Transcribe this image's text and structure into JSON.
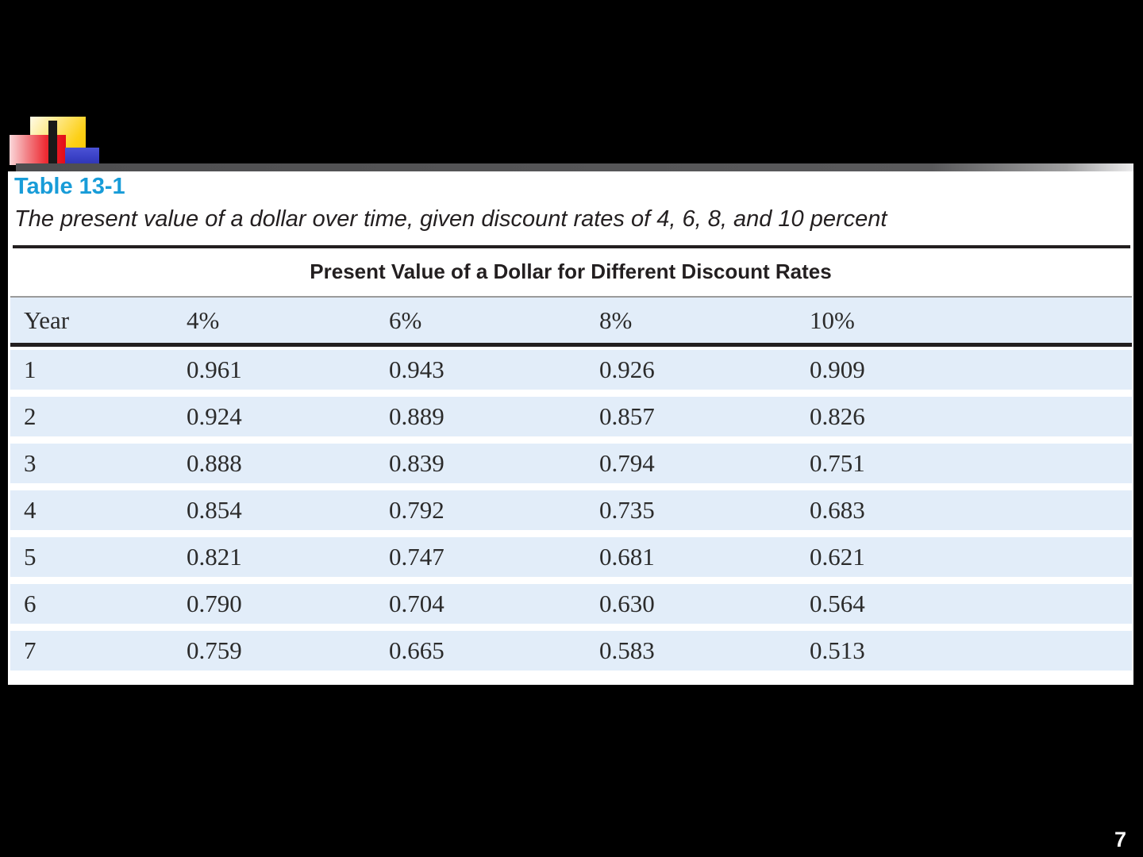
{
  "page_number": "7",
  "logo": {
    "shapes": [
      "yellow-square",
      "red-square",
      "blue-square",
      "black-bar"
    ]
  },
  "table": {
    "number": "Table 13-1",
    "caption": "The present value of a dollar over time, given discount rates of 4, 6, 8, and 10 percent",
    "title": "Present Value of a Dollar for Different Discount Rates",
    "columns": [
      "Year",
      "4%",
      "6%",
      "8%",
      "10%"
    ],
    "rows": [
      [
        "1",
        "0.961",
        "0.943",
        "0.926",
        "0.909"
      ],
      [
        "2",
        "0.924",
        "0.889",
        "0.857",
        "0.826"
      ],
      [
        "3",
        "0.888",
        "0.839",
        "0.794",
        "0.751"
      ],
      [
        "4",
        "0.854",
        "0.792",
        "0.735",
        "0.683"
      ],
      [
        "5",
        "0.821",
        "0.747",
        "0.681",
        "0.621"
      ],
      [
        "6",
        "0.790",
        "0.704",
        "0.630",
        "0.564"
      ],
      [
        "7",
        "0.759",
        "0.665",
        "0.583",
        "0.513"
      ]
    ]
  },
  "colors": {
    "slide_background": "#000000",
    "table_number_blue": "#189cd8",
    "row_blue": "#e2edf9",
    "text_dark": "#231f20",
    "divider_gray": "#5a5a5c",
    "logo_yellow": "#fdd017",
    "logo_red": "#e30b17",
    "logo_blue": "#383fc4"
  }
}
